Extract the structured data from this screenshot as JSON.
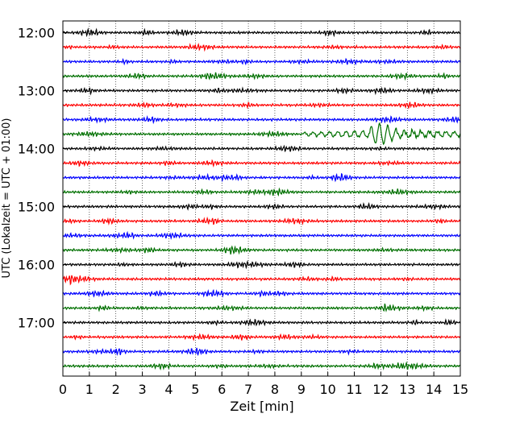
{
  "chart_data": {
    "type": "line",
    "title": "",
    "xlabel": "Zeit  [min]",
    "ylabel": "UTC (Lokalzeit = UTC + 01:00)",
    "xlim": [
      0,
      15
    ],
    "x_ticks": [
      "0",
      "1",
      "2",
      "3",
      "4",
      "5",
      "6",
      "7",
      "8",
      "9",
      "10",
      "11",
      "12",
      "13",
      "14",
      "15"
    ],
    "y_ticks": [
      "12:00",
      "13:00",
      "14:00",
      "15:00",
      "16:00",
      "17:00"
    ],
    "grid": true,
    "trace_colors": [
      "#000000",
      "#ff0000",
      "#0000ff",
      "#007000"
    ],
    "event": {
      "trace_row": 7,
      "start_min": 9.0,
      "peak_min": 12.0,
      "end_min": 15.0
    },
    "rows": [
      "12:00",
      "12:15",
      "12:30",
      "12:45",
      "13:00",
      "13:15",
      "13:30",
      "13:45",
      "14:00",
      "14:15",
      "14:30",
      "14:45",
      "15:00",
      "15:15",
      "15:30",
      "15:45",
      "16:00",
      "16:15",
      "16:30",
      "16:45",
      "17:00",
      "17:15",
      "17:30",
      "17:45"
    ]
  }
}
